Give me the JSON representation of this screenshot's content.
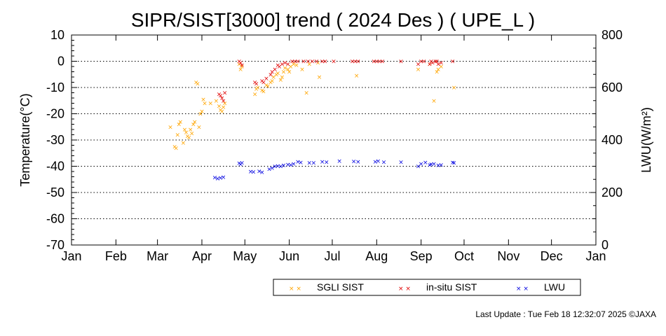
{
  "chart_data": {
    "type": "scatter",
    "title": "SIPR/SIST[3000] trend ( 2024 Des ) ( UPE_L )",
    "xlabel": "",
    "ylabel": "Temperature(°C)",
    "y2label": "LWU(W/m²)",
    "x_ticks": [
      "Jan",
      "Feb",
      "Mar",
      "Apr",
      "May",
      "Jun",
      "Jul",
      "Aug",
      "Sep",
      "Oct",
      "Nov",
      "Dec",
      "Jan"
    ],
    "xlim": [
      "2024-01-01",
      "2025-01-01"
    ],
    "ylim": [
      -70,
      10
    ],
    "y_ticks": [
      10,
      0,
      -10,
      -20,
      -30,
      -40,
      -50,
      -60,
      -70
    ],
    "y2lim": [
      0,
      800
    ],
    "y2_ticks": [
      800,
      600,
      400,
      200,
      0
    ],
    "grid": "horizontal dotted",
    "legend_position": "bottom",
    "series": [
      {
        "name": "SGLI SIST",
        "color": "#ffa500",
        "axis": "left",
        "points": [
          [
            "2024-03-10",
            -25
          ],
          [
            "2024-03-13",
            -32.5
          ],
          [
            "2024-03-14",
            -33
          ],
          [
            "2024-03-15",
            -28
          ],
          [
            "2024-03-16",
            -24
          ],
          [
            "2024-03-17",
            -23
          ],
          [
            "2024-03-19",
            -31
          ],
          [
            "2024-03-20",
            -26
          ],
          [
            "2024-03-21",
            -27
          ],
          [
            "2024-03-22",
            -28.5
          ],
          [
            "2024-03-23",
            -29
          ],
          [
            "2024-03-24",
            -26
          ],
          [
            "2024-03-25",
            -27.5
          ],
          [
            "2024-03-26",
            -24
          ],
          [
            "2024-03-27",
            -23
          ],
          [
            "2024-03-28",
            -8
          ],
          [
            "2024-03-29",
            -8.5
          ],
          [
            "2024-03-30",
            -25
          ],
          [
            "2024-03-31",
            -20
          ],
          [
            "2024-04-01",
            -19
          ],
          [
            "2024-04-02",
            -14.5
          ],
          [
            "2024-04-03",
            -16
          ],
          [
            "2024-04-07",
            -16
          ],
          [
            "2024-04-11",
            -15
          ],
          [
            "2024-04-13",
            -17
          ],
          [
            "2024-04-14",
            -18.5
          ],
          [
            "2024-04-15",
            -19
          ],
          [
            "2024-04-16",
            -17.5
          ],
          [
            "2024-04-17",
            -16
          ],
          [
            "2024-04-27",
            -1
          ],
          [
            "2024-04-28",
            -3
          ],
          [
            "2024-04-29",
            -2
          ],
          [
            "2024-05-08",
            -12.5
          ],
          [
            "2024-05-09",
            -10.5
          ],
          [
            "2024-05-10",
            -10
          ],
          [
            "2024-05-13",
            -11
          ],
          [
            "2024-05-14",
            -11.5
          ],
          [
            "2024-05-16",
            -9
          ],
          [
            "2024-05-17",
            -9.5
          ],
          [
            "2024-05-19",
            -8
          ],
          [
            "2024-05-20",
            -7.5
          ],
          [
            "2024-05-21",
            -6
          ],
          [
            "2024-05-23",
            -5
          ],
          [
            "2024-05-24",
            -4.5
          ],
          [
            "2024-05-26",
            -7
          ],
          [
            "2024-05-27",
            -6
          ],
          [
            "2024-05-28",
            -4
          ],
          [
            "2024-05-29",
            -2.5
          ],
          [
            "2024-05-31",
            -3
          ],
          [
            "2024-06-01",
            -4
          ],
          [
            "2024-06-02",
            -2
          ],
          [
            "2024-06-04",
            -1
          ],
          [
            "2024-06-06",
            -1.5
          ],
          [
            "2024-06-10",
            -3
          ],
          [
            "2024-06-13",
            -12
          ],
          [
            "2024-06-15",
            -1
          ],
          [
            "2024-06-21",
            -0.5
          ],
          [
            "2024-06-22",
            -6
          ],
          [
            "2024-07-18",
            -5.5
          ],
          [
            "2024-08-30",
            -3
          ],
          [
            "2024-09-07",
            -1
          ],
          [
            "2024-09-10",
            -15
          ],
          [
            "2024-09-12",
            -4
          ],
          [
            "2024-09-13",
            -3
          ],
          [
            "2024-09-15",
            -2
          ],
          [
            "2024-09-24",
            -10
          ]
        ]
      },
      {
        "name": "in-situ SIST",
        "color": "#e00000",
        "axis": "left",
        "points": [
          [
            "2024-04-13",
            -12.5
          ],
          [
            "2024-04-14",
            -13
          ],
          [
            "2024-04-15",
            -14
          ],
          [
            "2024-04-16",
            -15
          ],
          [
            "2024-04-17",
            -12
          ],
          [
            "2024-04-27",
            0
          ],
          [
            "2024-04-28",
            -0.5
          ],
          [
            "2024-04-29",
            -1.5
          ],
          [
            "2024-05-08",
            -8
          ],
          [
            "2024-05-09",
            -8.5
          ],
          [
            "2024-05-13",
            -7.5
          ],
          [
            "2024-05-14",
            -8
          ],
          [
            "2024-05-16",
            -6.5
          ],
          [
            "2024-05-19",
            -5
          ],
          [
            "2024-05-20",
            -4
          ],
          [
            "2024-05-22",
            -3
          ],
          [
            "2024-05-24",
            -1.5
          ],
          [
            "2024-05-25",
            -2
          ],
          [
            "2024-05-27",
            -1
          ],
          [
            "2024-05-29",
            -0.5
          ],
          [
            "2024-05-31",
            -1
          ],
          [
            "2024-06-03",
            0
          ],
          [
            "2024-06-05",
            0
          ],
          [
            "2024-06-07",
            0
          ],
          [
            "2024-06-11",
            0
          ],
          [
            "2024-06-14",
            0
          ],
          [
            "2024-06-17",
            0
          ],
          [
            "2024-06-20",
            0
          ],
          [
            "2024-06-24",
            0
          ],
          [
            "2024-06-26",
            0
          ],
          [
            "2024-07-02",
            0
          ],
          [
            "2024-07-15",
            0
          ],
          [
            "2024-07-17",
            0
          ],
          [
            "2024-07-19",
            0
          ],
          [
            "2024-07-30",
            0
          ],
          [
            "2024-08-01",
            0
          ],
          [
            "2024-08-03",
            0
          ],
          [
            "2024-08-05",
            0
          ],
          [
            "2024-08-18",
            0
          ],
          [
            "2024-08-30",
            -1
          ],
          [
            "2024-09-01",
            0
          ],
          [
            "2024-09-03",
            0
          ],
          [
            "2024-09-07",
            -1
          ],
          [
            "2024-09-08",
            0
          ],
          [
            "2024-09-09",
            -0.5
          ],
          [
            "2024-09-11",
            0
          ],
          [
            "2024-09-12",
            0
          ],
          [
            "2024-09-13",
            -1
          ],
          [
            "2024-09-15",
            -0.5
          ],
          [
            "2024-09-23",
            0
          ]
        ]
      },
      {
        "name": "LWU",
        "color": "#0000e0",
        "axis": "right",
        "points": [
          [
            "2024-04-10",
            257
          ],
          [
            "2024-04-12",
            254
          ],
          [
            "2024-04-14",
            256
          ],
          [
            "2024-04-16",
            259
          ],
          [
            "2024-04-27",
            312
          ],
          [
            "2024-04-28",
            308
          ],
          [
            "2024-04-29",
            314
          ],
          [
            "2024-05-05",
            280
          ],
          [
            "2024-05-07",
            279
          ],
          [
            "2024-05-11",
            282
          ],
          [
            "2024-05-13",
            277
          ],
          [
            "2024-05-18",
            290
          ],
          [
            "2024-05-20",
            293
          ],
          [
            "2024-05-22",
            300
          ],
          [
            "2024-05-24",
            302
          ],
          [
            "2024-05-26",
            300
          ],
          [
            "2024-05-28",
            304
          ],
          [
            "2024-05-31",
            307
          ],
          [
            "2024-06-02",
            305
          ],
          [
            "2024-06-04",
            310
          ],
          [
            "2024-06-07",
            318
          ],
          [
            "2024-06-09",
            315
          ],
          [
            "2024-06-15",
            313
          ],
          [
            "2024-06-18",
            314
          ],
          [
            "2024-06-24",
            318
          ],
          [
            "2024-06-27",
            316
          ],
          [
            "2024-07-06",
            320
          ],
          [
            "2024-07-16",
            319
          ],
          [
            "2024-07-19",
            318
          ],
          [
            "2024-07-31",
            318
          ],
          [
            "2024-08-02",
            320
          ],
          [
            "2024-08-06",
            316
          ],
          [
            "2024-08-18",
            316
          ],
          [
            "2024-08-30",
            300
          ],
          [
            "2024-09-01",
            310
          ],
          [
            "2024-09-04",
            315
          ],
          [
            "2024-09-07",
            306
          ],
          [
            "2024-09-08",
            308
          ],
          [
            "2024-09-10",
            310
          ],
          [
            "2024-09-13",
            304
          ],
          [
            "2024-09-15",
            305
          ],
          [
            "2024-09-23",
            315
          ],
          [
            "2024-09-24",
            313
          ]
        ]
      }
    ]
  },
  "legend": {
    "items": [
      {
        "label": "SGLI SIST",
        "color": "#ffa500"
      },
      {
        "label": "in-situ SIST",
        "color": "#e00000"
      },
      {
        "label": "LWU",
        "color": "#0000e0"
      }
    ]
  },
  "footer": {
    "last_update": "Last Update : Tue Feb 18 12:32:07 2025 ©JAXA"
  }
}
